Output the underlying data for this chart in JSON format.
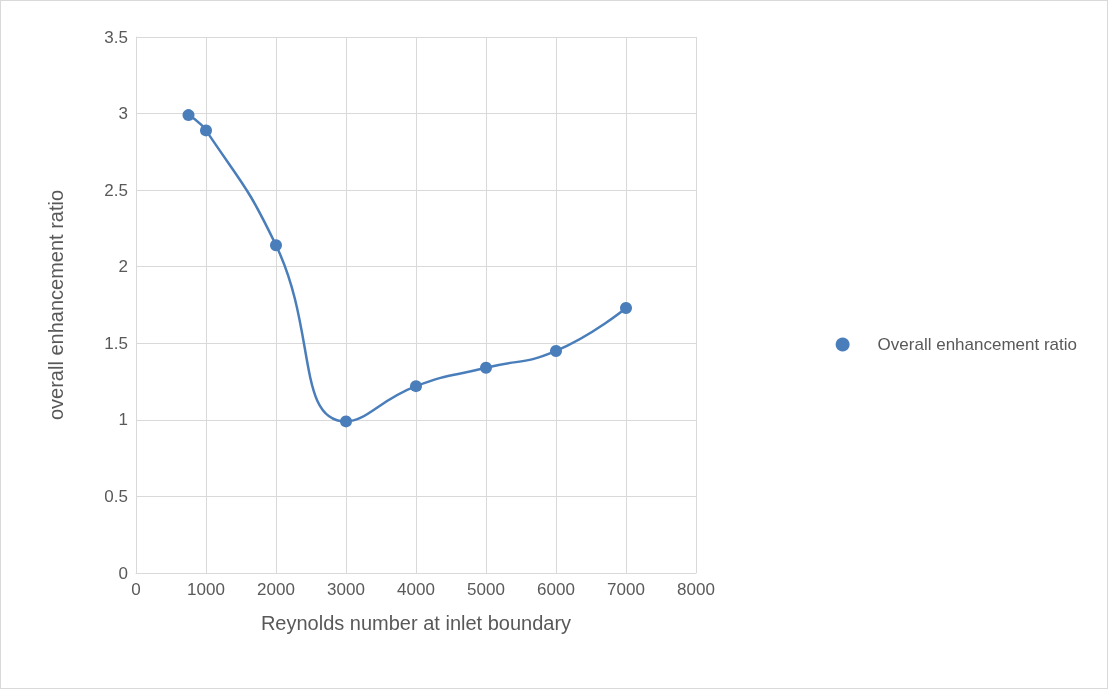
{
  "chart_data": {
    "type": "line",
    "xlabel": "Reynolds number at inlet boundary",
    "ylabel": "overall enhancement ratio",
    "x": [
      750,
      1000,
      2000,
      3000,
      4000,
      5000,
      6000,
      7000
    ],
    "series": [
      {
        "name": "Overall enhancement ratio",
        "color": "#4a7ebb",
        "values": [
          2.99,
          2.89,
          2.14,
          0.99,
          1.22,
          1.34,
          1.45,
          1.73
        ]
      }
    ],
    "xlim": [
      0,
      8000
    ],
    "xticks": [
      0,
      1000,
      2000,
      3000,
      4000,
      5000,
      6000,
      7000,
      8000
    ],
    "ylim": [
      0,
      3.5
    ],
    "yticks": [
      0,
      0.5,
      1,
      1.5,
      2,
      2.5,
      3,
      3.5
    ],
    "grid": true,
    "legend": "right",
    "marker": "circle",
    "line_style": "solid"
  }
}
